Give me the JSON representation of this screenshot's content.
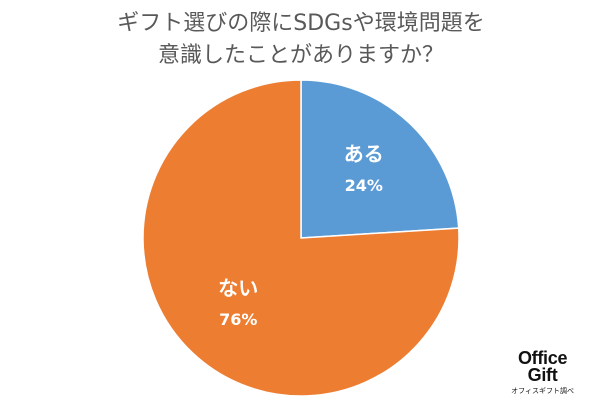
{
  "chart_data": {
    "type": "pie",
    "title_lines": [
      "ギフト選びの際にSDGsや環境問題を",
      "意識したことがありますか？"
    ],
    "slices": [
      {
        "label": "ある",
        "value": 24,
        "value_label": "24%",
        "color": "#5B9BD5"
      },
      {
        "label": "ない",
        "value": 76,
        "value_label": "76%",
        "color": "#ED7D31"
      }
    ],
    "legend": "none"
  },
  "logo": {
    "line1": "Office",
    "line2": "Gift",
    "tagline": "オフィスギフト調べ"
  }
}
